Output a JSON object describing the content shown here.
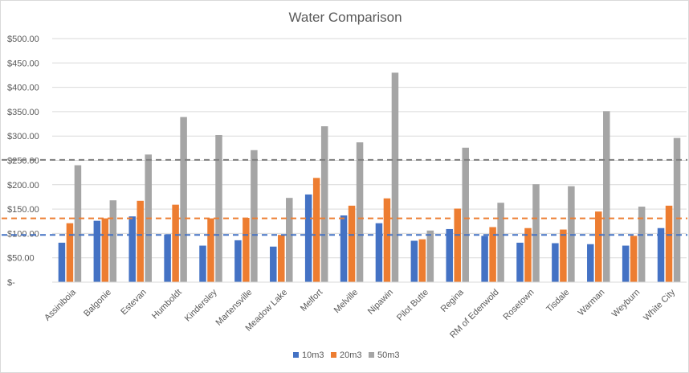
{
  "chart_data": {
    "type": "bar",
    "title": "Water Comparison",
    "xlabel": "",
    "ylabel": "",
    "ylim": [
      0,
      500
    ],
    "y_ticks": [
      0,
      50,
      100,
      150,
      200,
      250,
      300,
      350,
      400,
      450,
      500
    ],
    "y_tick_labels": [
      "$-",
      "$50.00",
      "$100.00",
      "$150.00",
      "$200.00",
      "$250.00",
      "$300.00",
      "$350.00",
      "$400.00",
      "$450.00",
      "$500.00"
    ],
    "grid": true,
    "legend_position": "bottom",
    "categories": [
      "Assiniboia",
      "Balgonie",
      "Estevan",
      "Humboldt",
      "Kindersley",
      "Martensville",
      "Meadow Lake",
      "Melfort",
      "Melville",
      "Nipawin",
      "Pilot Butte",
      "Regina",
      "RM of Edenwold",
      "Rosetown",
      "Tisdale",
      "Warman",
      "Weyburn",
      "White City"
    ],
    "series": [
      {
        "name": "10m3",
        "color": "#4472C4",
        "values": [
          81,
          126,
          135,
          98,
          75,
          86,
          73,
          180,
          137,
          121,
          85,
          109,
          95,
          81,
          80,
          78,
          75,
          111
        ]
      },
      {
        "name": "20m3",
        "color": "#ED7D31",
        "values": [
          121,
          131,
          167,
          159,
          131,
          132,
          97,
          214,
          157,
          172,
          88,
          151,
          113,
          111,
          108,
          145,
          95,
          157
        ]
      },
      {
        "name": "50m3",
        "color": "#A5A5A5",
        "values": [
          240,
          168,
          262,
          339,
          302,
          271,
          173,
          320,
          287,
          430,
          106,
          276,
          163,
          201,
          197,
          351,
          155,
          296
        ]
      }
    ],
    "reference_lines": [
      {
        "series": "10m3",
        "value": 97,
        "color": "#4472C4"
      },
      {
        "series": "20m3",
        "value": 131,
        "color": "#ED7D31"
      },
      {
        "series": "50m3",
        "value": 251,
        "color": "#7F7F7F"
      }
    ],
    "gridline_color": "#D9D9D9",
    "text_color": "#595959"
  }
}
